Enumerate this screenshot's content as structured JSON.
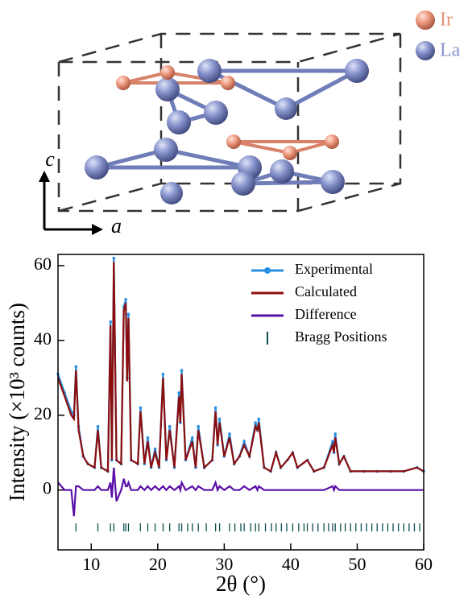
{
  "structure": {
    "legend": [
      "Ir",
      "La"
    ],
    "axes": [
      "c",
      "a"
    ]
  },
  "chart_data": {
    "type": "line",
    "xlabel": "2θ (°)",
    "ylabel": "Intensity (×10³ counts)",
    "xlim": [
      5,
      60
    ],
    "xticks": [
      10,
      20,
      30,
      40,
      50,
      60
    ],
    "ylim": [
      -16,
      63
    ],
    "yticks": [
      0,
      20,
      40,
      60
    ],
    "legend_loc": "upper right",
    "x": [
      5,
      6,
      7,
      7.4,
      7.7,
      8.1,
      8.8,
      9.5,
      10.5,
      11,
      11.5,
      12.5,
      12.9,
      13.1,
      13.4,
      13.8,
      14.5,
      14.9,
      15.2,
      15.4,
      15.6,
      16,
      17,
      17.4,
      18,
      18.5,
      19,
      19.6,
      20.2,
      20.8,
      21.3,
      21.8,
      22.5,
      23.2,
      23.4,
      23.6,
      24.2,
      25.2,
      25.7,
      26.1,
      27,
      28.2,
      28.7,
      29,
      29.3,
      30,
      30.8,
      31.5,
      32.3,
      33,
      33.8,
      34.7,
      35,
      35.2,
      36,
      37,
      37.8,
      38.5,
      39.5,
      40.3,
      41,
      42.5,
      43.5,
      45,
      46.3,
      46.5,
      46.7,
      47.3,
      48,
      49,
      51,
      53,
      55,
      57,
      59,
      60
    ],
    "series": [
      {
        "name": "Experimental",
        "color": "#2a8ee0",
        "markers": true,
        "values": [
          31,
          26,
          21,
          20,
          33,
          17,
          9,
          7,
          6,
          17,
          6,
          5,
          45,
          8,
          62,
          8,
          7,
          49,
          51,
          30,
          47,
          8,
          7,
          22,
          7,
          14,
          6,
          11,
          6,
          31,
          8,
          17,
          6,
          26,
          18,
          32,
          8,
          14,
          6,
          17,
          6,
          8,
          22,
          12,
          19,
          9,
          15,
          7,
          9,
          13,
          9,
          18,
          16,
          19,
          6,
          5,
          10,
          6,
          8,
          10,
          6,
          8,
          5,
          6,
          13,
          10,
          15,
          7,
          9,
          5,
          5,
          5,
          5,
          5,
          6,
          5
        ]
      },
      {
        "name": "Calculated",
        "color": "#8b0d0d",
        "markers": false,
        "values": [
          30,
          25,
          20,
          19,
          32,
          16,
          9,
          7,
          6,
          16,
          6,
          5,
          44,
          8,
          61,
          8,
          7,
          48,
          50,
          29,
          46,
          8,
          7,
          21,
          7,
          13,
          6,
          10,
          6,
          30,
          8,
          16,
          6,
          25,
          18,
          31,
          8,
          13,
          6,
          16,
          6,
          8,
          21,
          12,
          18,
          9,
          14,
          7,
          9,
          12,
          9,
          17,
          16,
          18,
          6,
          5,
          10,
          6,
          8,
          10,
          6,
          8,
          5,
          6,
          12,
          10,
          14,
          7,
          9,
          5,
          5,
          5,
          5,
          5,
          6,
          5
        ]
      },
      {
        "name": "Difference",
        "color": "#5a0fa8",
        "markers": false,
        "values": [
          2,
          0,
          0,
          -7,
          1,
          1,
          0,
          0,
          0,
          1,
          0,
          0,
          2,
          -2,
          6,
          -3,
          0,
          3,
          1,
          1,
          2,
          0,
          0,
          1,
          0,
          1,
          0,
          1,
          0,
          1,
          0,
          1,
          0,
          1,
          0,
          2,
          0,
          1,
          0,
          1,
          0,
          0,
          2,
          0,
          1,
          0,
          1,
          0,
          0,
          1,
          0,
          1,
          0,
          1,
          0,
          0,
          0,
          0,
          0,
          0,
          0,
          0,
          0,
          0,
          1,
          0,
          1,
          0,
          0,
          0,
          0,
          0,
          0,
          0,
          0,
          0
        ]
      }
    ],
    "bragg": {
      "name": "Bragg Positions",
      "color": "#0d4d4d",
      "level": -10,
      "positions": [
        7.7,
        11,
        12.9,
        13.4,
        14.9,
        15.2,
        15.6,
        17.4,
        18.5,
        19.6,
        20.8,
        21.8,
        23.2,
        23.6,
        24.5,
        25.2,
        26.1,
        27.3,
        28.7,
        29.3,
        30.8,
        31.6,
        32.5,
        33,
        34,
        34.7,
        35.2,
        36.2,
        37.1,
        37.8,
        38.6,
        39.4,
        40.3,
        41.2,
        42,
        42.5,
        43.3,
        44.1,
        45,
        45.7,
        46.3,
        46.7,
        47.5,
        48.2,
        49,
        49.8,
        50.6,
        51.4,
        52.2,
        53,
        53.8,
        54.6,
        55.4,
        56.2,
        57,
        57.8,
        58.6,
        59.4
      ]
    }
  }
}
